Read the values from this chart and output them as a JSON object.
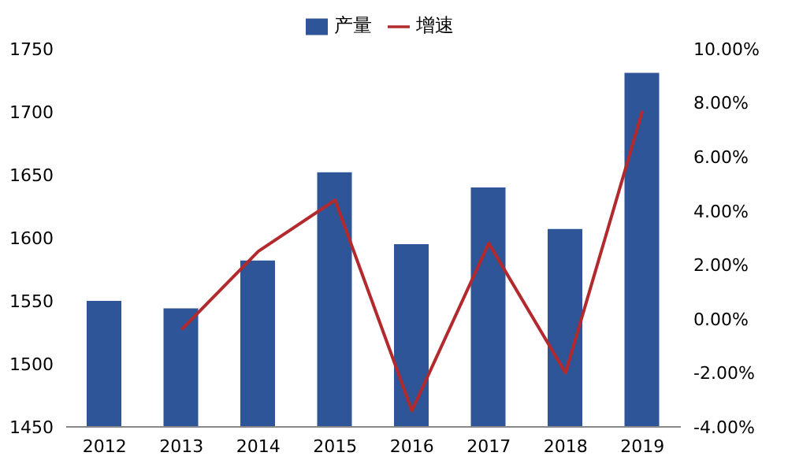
{
  "chart_data": {
    "type": "bar",
    "categories": [
      "2012",
      "2013",
      "2014",
      "2015",
      "2016",
      "2017",
      "2018",
      "2019"
    ],
    "series": [
      {
        "name": "产量",
        "color": "#2e5597",
        "values": [
          1550,
          1544,
          1582,
          1652,
          1595,
          1640,
          1607,
          1731
        ]
      },
      {
        "name": "增速",
        "type": "line",
        "axis": "y2",
        "color": "#b22a2e",
        "values": [
          null,
          -0.4,
          2.5,
          4.4,
          -3.4,
          2.8,
          -2.0,
          7.7
        ]
      }
    ],
    "ylim": [
      1450,
      1750
    ],
    "yticks": [
      1450,
      1500,
      1550,
      1600,
      1650,
      1700,
      1750
    ],
    "y2lim": [
      -4,
      10
    ],
    "y2ticks": [
      {
        "value": -4,
        "label": "-4.00%"
      },
      {
        "value": -2,
        "label": "-2.00%"
      },
      {
        "value": 0,
        "label": "0.00%"
      },
      {
        "value": 2,
        "label": "2.00%"
      },
      {
        "value": 4,
        "label": "4.00%"
      },
      {
        "value": 6,
        "label": "6.00%"
      },
      {
        "value": 8,
        "label": "8.00%"
      },
      {
        "value": 10,
        "label": "10.00%"
      }
    ],
    "legend": "top",
    "grid": false,
    "marker": "none"
  }
}
